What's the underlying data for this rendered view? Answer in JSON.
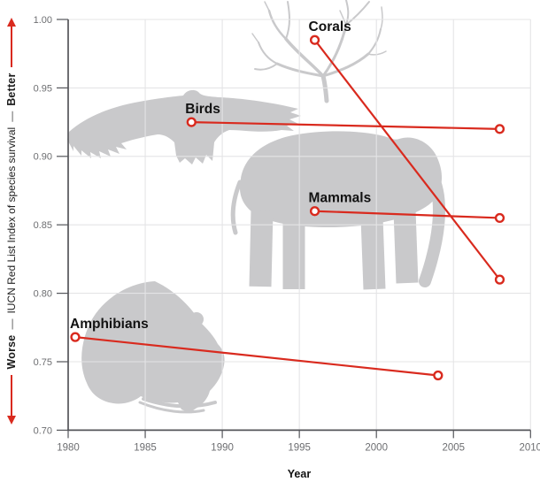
{
  "chart_data": {
    "type": "line",
    "xlabel": "Year",
    "ylabel": "IUCN Red List Index of species survival",
    "better_label": "Better",
    "worse_label": "Worse",
    "separator": "—",
    "xlim": [
      1980,
      2010
    ],
    "ylim": [
      0.7,
      1.0
    ],
    "x_ticks": [
      "1980",
      "1985",
      "1990",
      "1995",
      "2000",
      "2005",
      "2010"
    ],
    "y_ticks": [
      "1.00",
      "0.95",
      "0.90",
      "0.85",
      "0.80",
      "0.75",
      "0.70"
    ],
    "grid": true,
    "legend_position": "inline-labels-at-series-start",
    "series": [
      {
        "name": "Corals",
        "x": [
          1996,
          2008
        ],
        "y": [
          0.985,
          0.81
        ]
      },
      {
        "name": "Birds",
        "x": [
          1988,
          2008
        ],
        "y": [
          0.925,
          0.92
        ]
      },
      {
        "name": "Mammals",
        "x": [
          1996,
          2008
        ],
        "y": [
          0.86,
          0.855
        ]
      },
      {
        "name": "Amphibians",
        "x": [
          1980,
          2004
        ],
        "y": [
          0.768,
          0.74
        ]
      }
    ],
    "point_style": "open-circle-endpoints",
    "colors": {
      "line": "#d92a1e",
      "silhouette": "#c9c9cb",
      "grid": "#e4e4e6",
      "axis": "#54555a",
      "tick_text": "#6d6e71",
      "label_text": "#121212"
    },
    "icons": {
      "better_arrow": "up-arrow",
      "worse_arrow": "down-arrow",
      "silhouettes": [
        "coral-silhouette",
        "bird-silhouette",
        "elephant-silhouette",
        "frog-silhouette"
      ]
    }
  }
}
